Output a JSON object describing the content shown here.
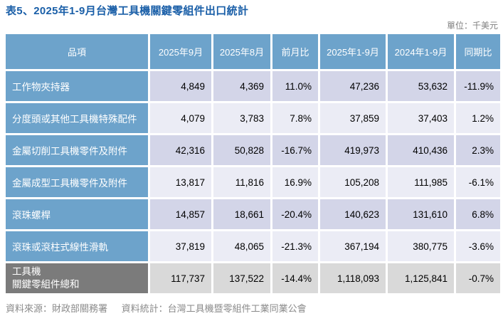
{
  "title": "表5、2025年1-9月台灣工具機關鍵零組件出口統計",
  "unit_label": "單位：千美元",
  "colors": {
    "title_blue": "#1a5fa8",
    "header_blue": "#6da3cb",
    "row_odd": "#d3d5e8",
    "row_even": "#ebecf5",
    "total_label_gray": "#7b7b7b",
    "total_value_gray": "#d9d9d9",
    "footer_gray": "#8a8a8a"
  },
  "table": {
    "columns": [
      "品項",
      "2025年9月",
      "2025年8月",
      "前月比",
      "2025年1-9月",
      "2024年1-9月",
      "同期比"
    ],
    "rows": [
      {
        "label": "工作物夾持器",
        "values": [
          "4,849",
          "4,369",
          "11.0%",
          "47,236",
          "53,632",
          "-11.9%"
        ]
      },
      {
        "label": "分度頭或其他工具機特殊配件",
        "values": [
          "4,079",
          "3,783",
          "7.8%",
          "37,859",
          "37,403",
          "1.2%"
        ]
      },
      {
        "label": "金屬切削工具機零件及附件",
        "values": [
          "42,316",
          "50,828",
          "-16.7%",
          "419,973",
          "410,436",
          "2.3%"
        ]
      },
      {
        "label": "金屬成型工具機零件及附件",
        "values": [
          "13,817",
          "11,816",
          "16.9%",
          "105,208",
          "111,985",
          "-6.1%"
        ]
      },
      {
        "label": "滾珠螺桿",
        "values": [
          "14,857",
          "18,661",
          "-20.4%",
          "140,623",
          "131,610",
          "6.8%"
        ]
      },
      {
        "label": "滾珠或滾柱式線性滑軌",
        "values": [
          "37,819",
          "48,065",
          "-21.3%",
          "367,194",
          "380,775",
          "-3.6%"
        ]
      }
    ],
    "total_row": {
      "label": "工具機\n關鍵零組件總和",
      "values": [
        "117,737",
        "137,522",
        "-14.4%",
        "1,118,093",
        "1,125,841",
        "-0.7%"
      ]
    }
  },
  "footer": {
    "source": "資料來源：財政部關務署",
    "statistics": "資料統計：台灣工具機暨零組件工業同業公會"
  }
}
